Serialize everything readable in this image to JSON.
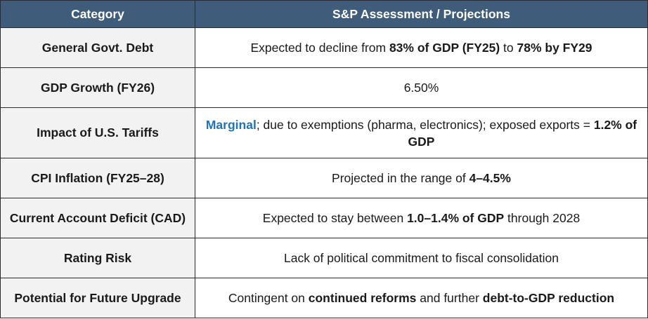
{
  "header": {
    "col1": "Category",
    "col2": "S&P Assessment / Projections"
  },
  "rows": [
    {
      "category": "General Govt. Debt",
      "parts": [
        {
          "text": "Expected to decline from ",
          "style": "normal"
        },
        {
          "text": "83% of GDP (FY25)",
          "style": "bold"
        },
        {
          "text": " to ",
          "style": "normal"
        },
        {
          "text": "78% by FY29",
          "style": "bold"
        }
      ]
    },
    {
      "category": "GDP Growth (FY26)",
      "parts": [
        {
          "text": "6.50%",
          "style": "normal"
        }
      ]
    },
    {
      "category": "Impact of U.S. Tariffs",
      "parts": [
        {
          "text": "Marginal",
          "style": "blue"
        },
        {
          "text": "; due to exemptions (pharma, electronics); exposed exports = ",
          "style": "normal"
        },
        {
          "text": "1.2% of GDP",
          "style": "bold"
        }
      ]
    },
    {
      "category": "CPI Inflation (FY25–28)",
      "parts": [
        {
          "text": "Projected in the range of ",
          "style": "normal"
        },
        {
          "text": "4–4.5%",
          "style": "bold"
        }
      ]
    },
    {
      "category": "Current Account Deficit (CAD)",
      "parts": [
        {
          "text": "Expected to stay between ",
          "style": "normal"
        },
        {
          "text": "1.0–1.4% of GDP",
          "style": "bold"
        },
        {
          "text": " through 2028",
          "style": "normal"
        }
      ]
    },
    {
      "category": "Rating Risk",
      "parts": [
        {
          "text": "Lack of political commitment to fiscal consolidation",
          "style": "normal"
        }
      ]
    },
    {
      "category": "Potential for Future Upgrade",
      "parts": [
        {
          "text": "Contingent on ",
          "style": "normal"
        },
        {
          "text": "continued reforms",
          "style": "bold"
        },
        {
          "text": " and further ",
          "style": "normal"
        },
        {
          "text": "debt-to-GDP reduction",
          "style": "bold"
        }
      ]
    }
  ],
  "colors": {
    "header_bg": "#3f5c7a",
    "category_bg": "#f2f2f2",
    "highlight_blue": "#1f74b8"
  }
}
